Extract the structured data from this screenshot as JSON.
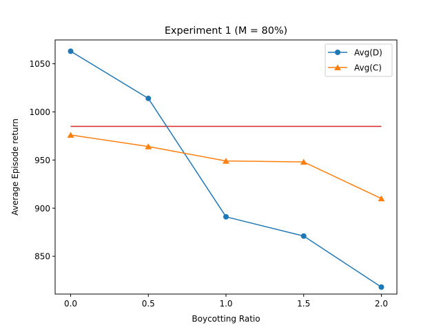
{
  "chart_data": {
    "type": "line",
    "title": "Experiment 1 (M = 80%)",
    "xlabel": "Boycotting Ratio",
    "ylabel": "Average Episode return",
    "xlim": [
      -0.1,
      2.1
    ],
    "ylim": [
      810.75,
      1074.75
    ],
    "xticks": [
      0.0,
      0.5,
      1.0,
      1.5,
      2.0
    ],
    "xtick_labels": [
      "0.0",
      "0.5",
      "1.0",
      "1.5",
      "2.0"
    ],
    "yticks": [
      850,
      900,
      950,
      1000,
      1050
    ],
    "ytick_labels": [
      "850",
      "900",
      "950",
      "1000",
      "1050"
    ],
    "x": [
      0.0,
      0.5,
      1.0,
      1.5,
      2.0
    ],
    "series": [
      {
        "name": "Avg(D)",
        "marker": "circle",
        "color": "#1f77b4",
        "values": [
          1063,
          1014,
          891,
          871,
          818
        ]
      },
      {
        "name": "Avg(C)",
        "marker": "triangle",
        "color": "#ff7f0e",
        "values": [
          976,
          964,
          949,
          948,
          910
        ]
      }
    ],
    "reference_line": {
      "y": 985,
      "x_range": [
        0.0,
        2.0
      ],
      "color": "#d62728"
    },
    "legend_position": "top-right",
    "grid": false
  }
}
